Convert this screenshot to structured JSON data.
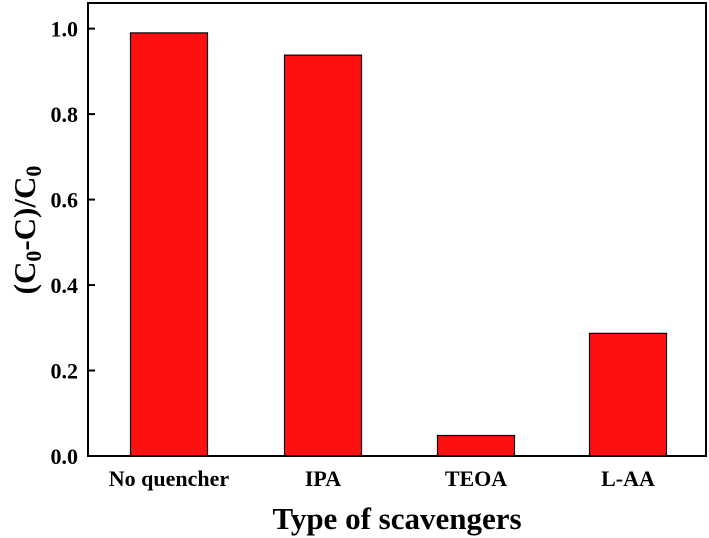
{
  "chart_data": {
    "type": "bar",
    "categories": [
      "No quencher",
      "IPA",
      "TEOA",
      "L-AA"
    ],
    "values": [
      0.99,
      0.938,
      0.048,
      0.287
    ],
    "xlabel": "Type of scavengers",
    "ylabel_parts": [
      "(C",
      "0",
      "-C)/C",
      "0"
    ],
    "ylim": [
      0,
      1.06
    ],
    "yticks": [
      0.0,
      0.2,
      0.4,
      0.6,
      0.8,
      1.0
    ],
    "ytick_labels": [
      "0.0",
      "0.2",
      "0.4",
      "0.6",
      "0.8",
      "1.0"
    ],
    "bar_color": "#ff1010",
    "grid": false,
    "legend": "none"
  }
}
